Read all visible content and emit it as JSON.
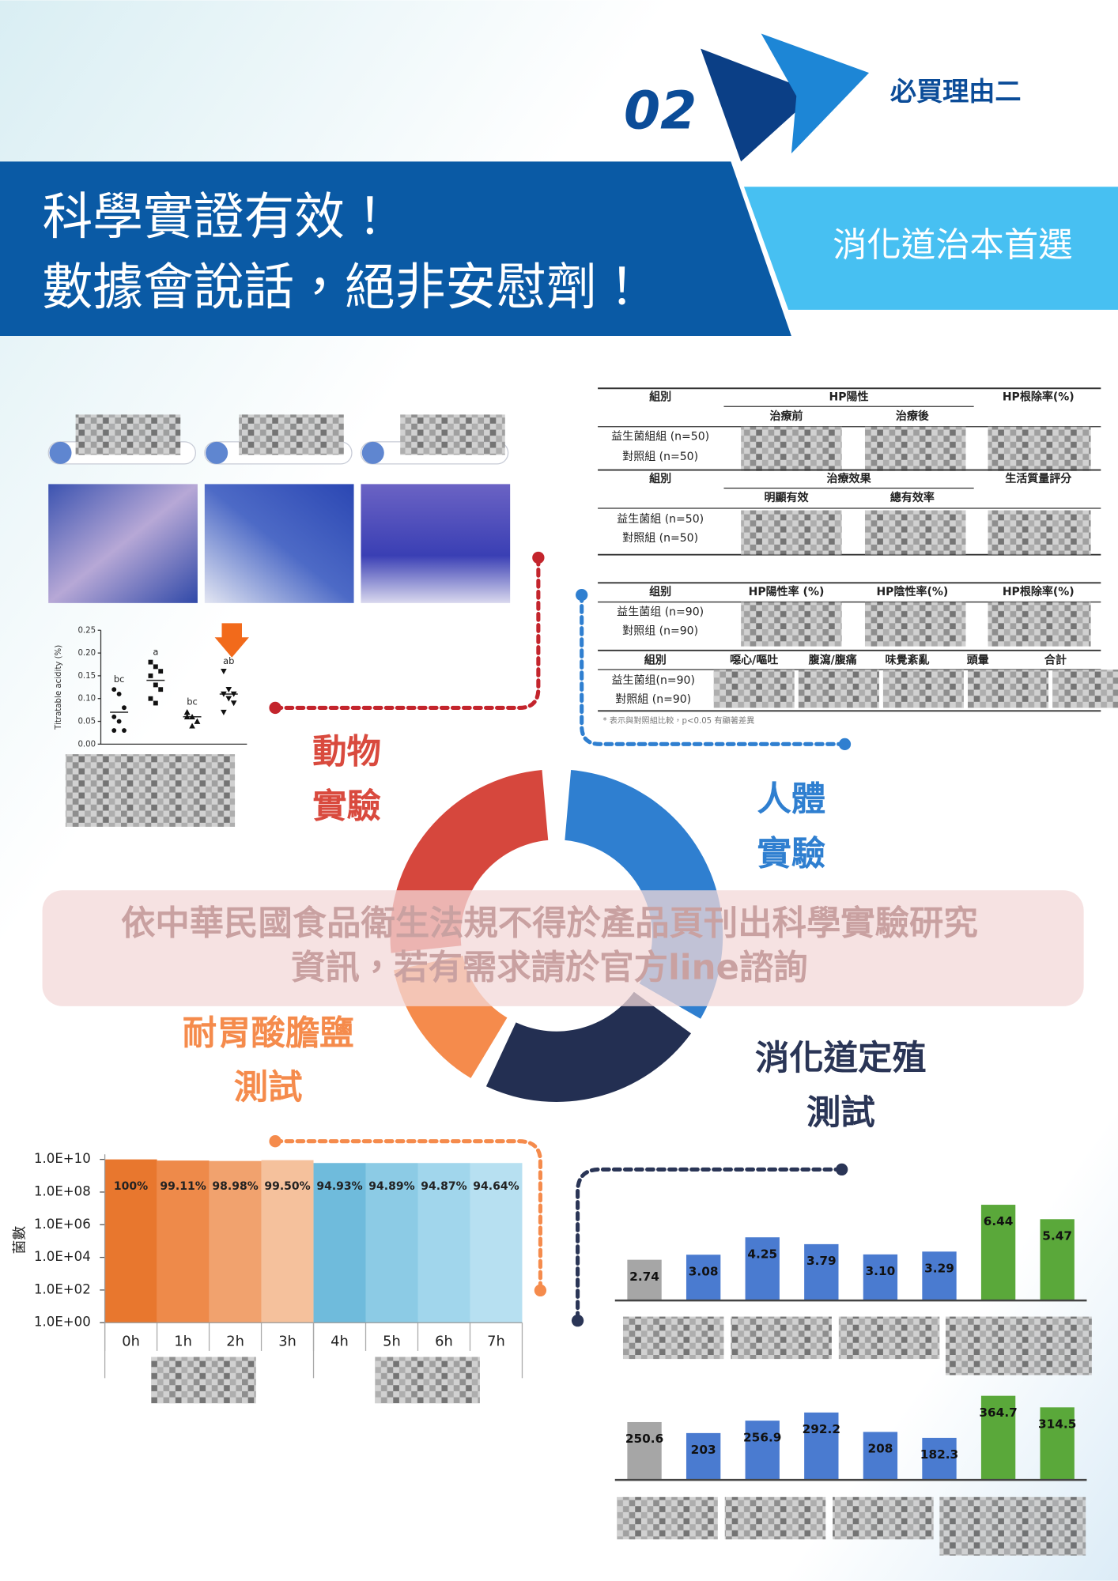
{
  "header": {
    "number": "02",
    "reason": "必買理由二",
    "title": [
      "科學實證有效！",
      "數據會說話，絕非安慰劑！"
    ],
    "subtitle": "消化道治本首選"
  },
  "cycle_labels": [
    [
      "動物",
      "實驗"
    ],
    [
      "人體",
      "實驗"
    ],
    [
      "耐胃酸膽鹽",
      "測試"
    ],
    [
      "消化道定殖",
      "測試"
    ]
  ],
  "notice": [
    "依中華民國食品衛生法規不得於產品頁刊出科學實驗研究",
    "資訊，若有需求請於官方line諮詢"
  ],
  "tables": [
    {
      "head": [
        "組別",
        "HP陽性",
        "HP根除率(%)"
      ],
      "subhead": [
        "治療前",
        "治療後"
      ],
      "rows": [
        "益生菌組組 (n=50)",
        "對照組 (n=50)"
      ]
    },
    {
      "head": [
        "組別",
        "治療效果",
        "生活質量評分"
      ],
      "subhead": [
        "明顯有效",
        "總有效率"
      ],
      "rows": [
        "益生菌組 (n=50)",
        "對照組 (n=50)"
      ]
    },
    {
      "head": [
        "组别",
        "HP陽性率 (%)",
        "HP陰性率(%)",
        "HP根除率(%)"
      ],
      "subhead": [],
      "rows": [
        "益生菌组 (n=90)",
        "對照组 (n=90)"
      ]
    },
    {
      "head": [
        "組別",
        "噁心/嘔吐",
        "腹瀉/腹痛",
        "味覺紊亂",
        "頭暈",
        "合計"
      ],
      "subhead": [],
      "rows": [
        "益生菌组(n=90)",
        "對照組 (n=90)"
      ]
    }
  ],
  "footnote": "* 表示與對照組比較，p<0.05 有顯著差異",
  "chart_data": [
    {
      "type": "scatter",
      "y_label": "Titratable acidity (%)",
      "ylim": [
        0,
        0.25
      ],
      "yticks": [
        {
          "value": 0,
          "label": "0.00"
        },
        {
          "value": 0.05,
          "label": "0.05"
        },
        {
          "value": 0.1,
          "label": "0.10"
        },
        {
          "value": 0.15,
          "label": "0.15"
        },
        {
          "value": 0.2,
          "label": "0.20"
        },
        {
          "value": 0.25,
          "label": "0.25"
        }
      ],
      "groups": [
        {
          "label": "bc",
          "marker": "circle",
          "values": [
            0.12,
            0.11,
            0.08,
            0.06,
            0.05,
            0.03,
            0.03
          ],
          "mean": 0.07
        },
        {
          "label": "a",
          "marker": "square",
          "values": [
            0.18,
            0.17,
            0.16,
            0.15,
            0.13,
            0.12,
            0.1,
            0.09
          ],
          "mean": 0.14
        },
        {
          "label": "bc",
          "marker": "triangle",
          "values": [
            0.07,
            0.06,
            0.05,
            0.06,
            0.04,
            0.05,
            0.07
          ],
          "mean": 0.06
        },
        {
          "label": "ab",
          "marker": "triangle-down",
          "values": [
            0.16,
            0.12,
            0.11,
            0.11,
            0.1,
            0.09,
            0.07
          ],
          "mean": 0.11
        }
      ]
    },
    {
      "type": "bar",
      "y_label": "菌數",
      "log_scale": true,
      "categories": [
        "0h",
        "1h",
        "2h",
        "3h",
        "4h",
        "5h",
        "6h",
        "7h"
      ],
      "values": [
        10000000000,
        8500000000,
        8000000000,
        9000000000,
        6000000000,
        6000000000,
        6000000000,
        6000000000
      ],
      "survival_rates": [
        "100%",
        "99.11%",
        "98.98%",
        "99.50%",
        "94.93%",
        "94.89%",
        "94.87%",
        "94.64%"
      ],
      "colors": [
        "#e8772e",
        "#ee8a4a",
        "#f1a26e",
        "#f5c19c",
        "#6fbbdc",
        "#8ccbe5",
        "#a1d6ec",
        "#b7e0f1"
      ],
      "ylim": [
        1,
        10000000000
      ],
      "yticks": [
        {
          "value": 1,
          "label": "1.0E+00"
        },
        {
          "value": 100,
          "label": "1.0E+02"
        },
        {
          "value": 10000,
          "label": "1.0E+04"
        },
        {
          "value": 1000000,
          "label": "1.0E+06"
        },
        {
          "value": 100000000,
          "label": "1.0E+08"
        },
        {
          "value": 10000000000,
          "label": "1.0E+10"
        }
      ]
    },
    {
      "type": "bar",
      "values": [
        2.74,
        3.08,
        4.25,
        3.79,
        3.1,
        3.29,
        6.44,
        5.47
      ],
      "value_labels": [
        "2.74",
        "3.08",
        "4.25",
        "3.79",
        "3.10",
        "3.29",
        "6.44",
        "5.47"
      ],
      "colors": [
        "#a6a6a6",
        "#4a7bd0",
        "#4a7bd0",
        "#4a7bd0",
        "#4a7bd0",
        "#4a7bd0",
        "#5aa83a",
        "#5aa83a"
      ],
      "ylim": [
        0,
        8
      ]
    },
    {
      "type": "bar",
      "values": [
        250.6,
        203,
        256.9,
        292.2,
        208,
        182.3,
        364.7,
        314.5
      ],
      "colors": [
        "#a6a6a6",
        "#4a7bd0",
        "#4a7bd0",
        "#4a7bd0",
        "#4a7bd0",
        "#4a7bd0",
        "#5aa83a",
        "#5aa83a"
      ],
      "ylim": [
        0,
        450
      ]
    }
  ]
}
